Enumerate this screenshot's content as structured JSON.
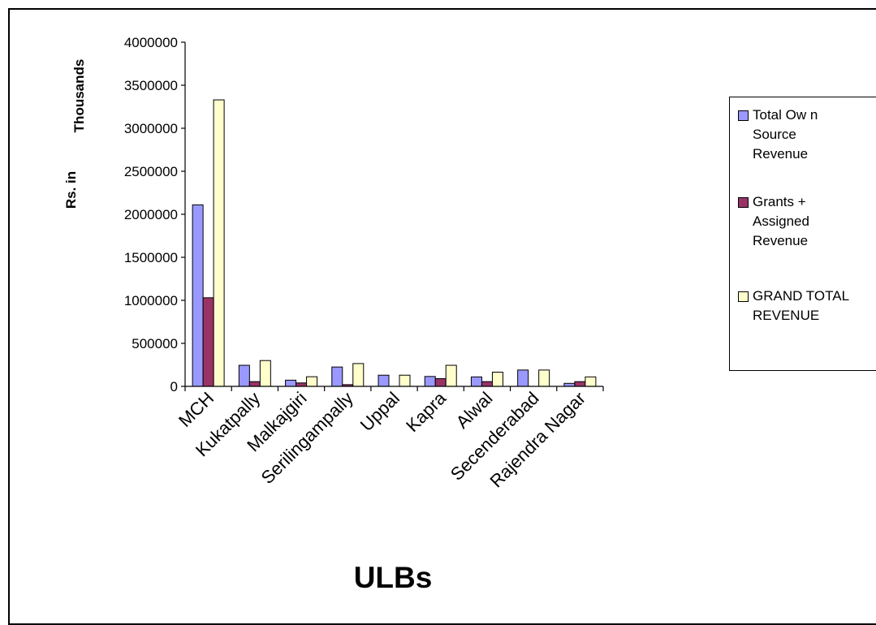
{
  "chart_data": {
    "type": "bar",
    "categories": [
      "MCH",
      "Kukatpally",
      "Malkajgiri",
      "Serilingampally",
      "Uppal",
      "Kapra",
      "Alwal",
      "Secenderabad",
      "Rajendra Nagar"
    ],
    "series": [
      {
        "name": "Total Ow n\nSource\nRevenue",
        "color": "#9999FF",
        "values": [
          2110000,
          245000,
          72000,
          225000,
          130000,
          115000,
          110000,
          190000,
          35000
        ]
      },
      {
        "name": "Grants +\nAssigned\nRevenue",
        "color": "#993366",
        "values": [
          1030000,
          55000,
          40000,
          20000,
          0,
          90000,
          55000,
          0,
          55000
        ]
      },
      {
        "name": "GRAND TOTAL\nREVENUE",
        "color": "#FFFFCC",
        "values": [
          3330000,
          300000,
          112000,
          265000,
          130000,
          245000,
          165000,
          190000,
          110000
        ]
      }
    ],
    "ylim": [
      0,
      4000000
    ],
    "yticks": [
      "0",
      "500000",
      "1000000",
      "1500000",
      "2000000",
      "2500000",
      "3000000",
      "3500000",
      "4000000"
    ],
    "ylabel_line1": "Thousands",
    "ylabel_line2": "Rs. in",
    "xlabel": "ULBs",
    "grid": false,
    "legend_position": "right"
  }
}
